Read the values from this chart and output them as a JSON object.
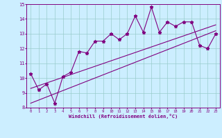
{
  "xlabel": "Windchill (Refroidissement éolien,°C)",
  "x_data": [
    0,
    1,
    2,
    3,
    4,
    5,
    6,
    7,
    8,
    9,
    10,
    11,
    12,
    13,
    14,
    15,
    16,
    17,
    18,
    19,
    20,
    21,
    22,
    23
  ],
  "y_data": [
    10.3,
    9.2,
    9.6,
    8.3,
    10.1,
    10.4,
    11.8,
    11.7,
    12.5,
    12.5,
    13.0,
    12.6,
    13.0,
    14.2,
    13.1,
    14.8,
    13.1,
    13.8,
    13.5,
    13.8,
    13.8,
    12.2,
    12.0,
    13.0
  ],
  "trend1_x": [
    0,
    23
  ],
  "trend1_y": [
    8.3,
    13.2
  ],
  "trend2_x": [
    0,
    23
  ],
  "trend2_y": [
    9.3,
    13.6
  ],
  "line_color": "#800080",
  "bg_color": "#cceeff",
  "grid_color": "#99cccc",
  "xlim": [
    -0.5,
    23.5
  ],
  "ylim": [
    8,
    15
  ],
  "yticks": [
    8,
    9,
    10,
    11,
    12,
    13,
    14,
    15
  ],
  "xticks": [
    0,
    1,
    2,
    3,
    4,
    5,
    6,
    7,
    8,
    9,
    10,
    11,
    12,
    13,
    14,
    15,
    16,
    17,
    18,
    19,
    20,
    21,
    22,
    23
  ]
}
